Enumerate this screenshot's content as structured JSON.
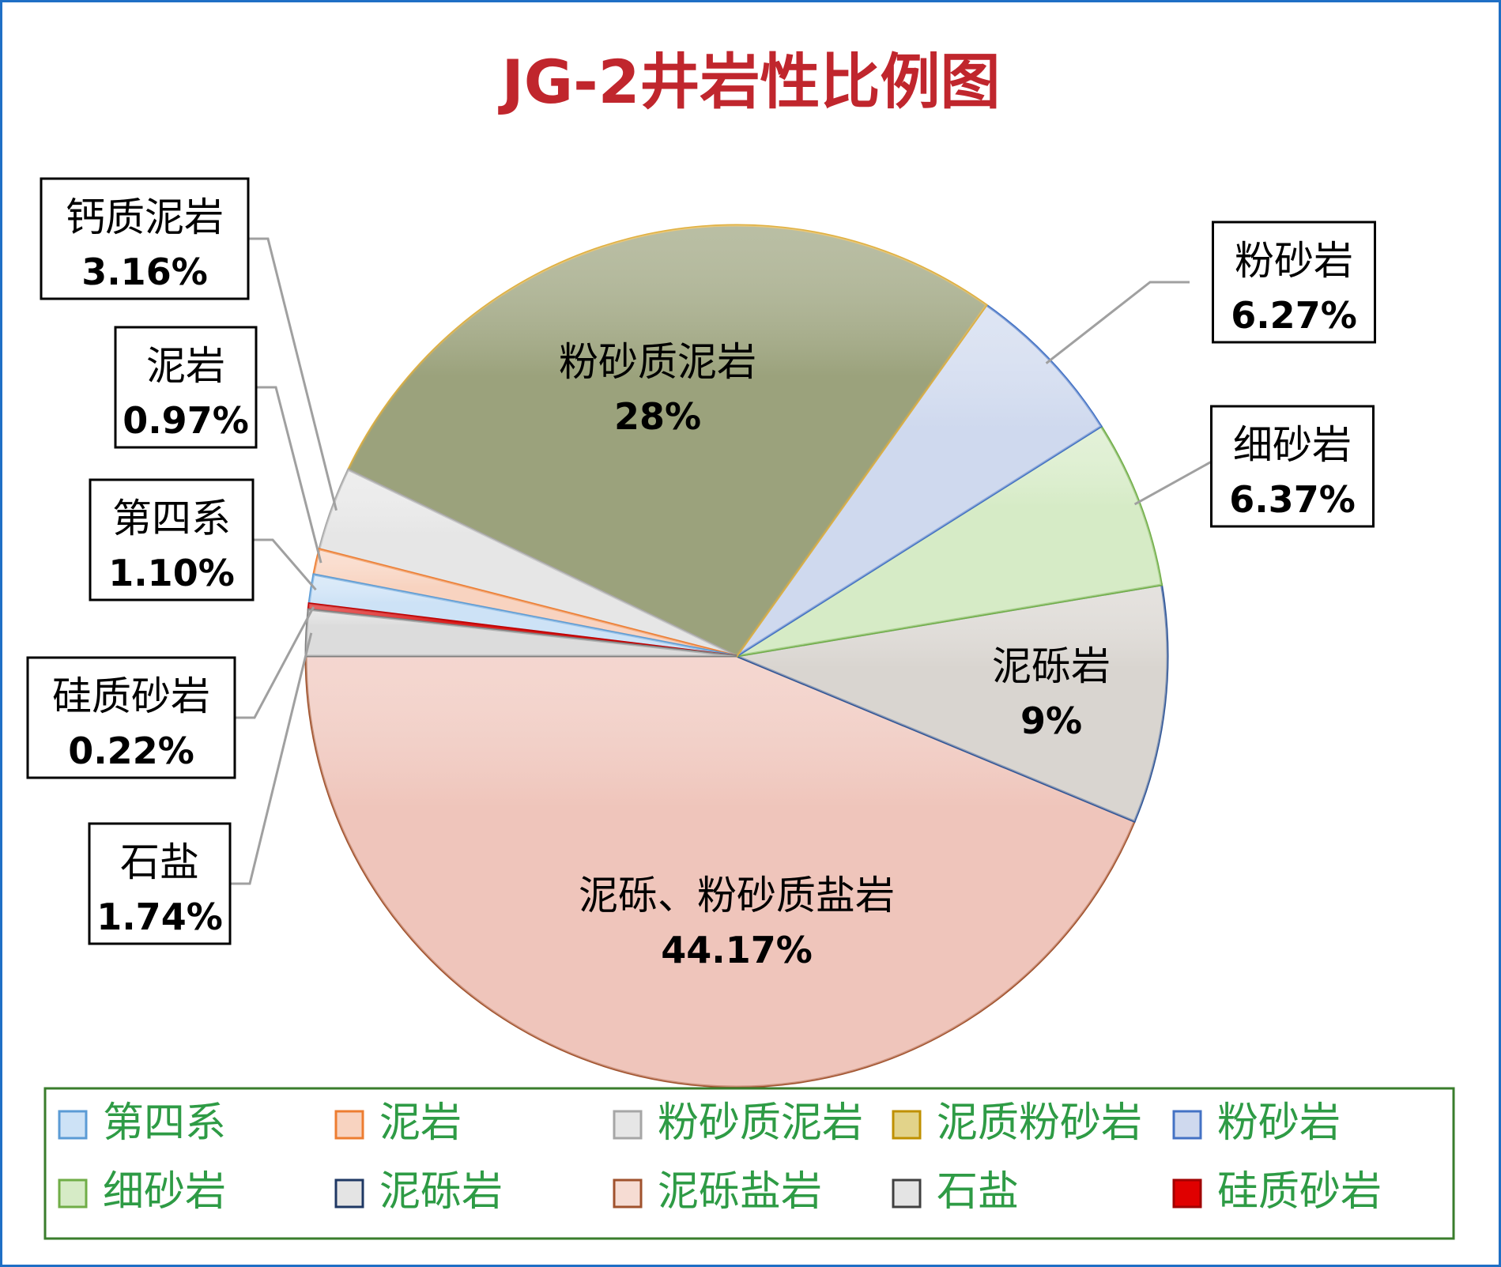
{
  "chart_data": {
    "type": "pie",
    "title": "JG-2井岩性比例图",
    "title_color": "#c0262d",
    "slices": [
      {
        "name": "泥砾、粉砂质盐岩",
        "pct_label": "44.17%",
        "value": 44.17,
        "color": "#efc5bb",
        "stroke": "#a0522d"
      },
      {
        "name": "泥砾岩",
        "pct_label": "9%",
        "value": 9.0,
        "color": "#d9d5d0",
        "stroke": "#2f5597"
      },
      {
        "name": "细砂岩",
        "pct_label": "6.37%",
        "value": 6.37,
        "color": "#d6ebc6",
        "stroke": "#70ad47"
      },
      {
        "name": "粉砂岩",
        "pct_label": "6.27%",
        "value": 6.27,
        "color": "#cfd9ee",
        "stroke": "#4472c4"
      },
      {
        "name": "粉砂质泥岩",
        "pct_label": "28%",
        "value": 28.0,
        "color": "#9ba27c",
        "stroke": "#e0b040"
      },
      {
        "name": "钙质泥岩",
        "pct_label": "3.16%",
        "value": 3.16,
        "color": "#e6e6e6",
        "stroke": "#a6a6a6"
      },
      {
        "name": "泥岩",
        "pct_label": "0.97%",
        "value": 0.97,
        "color": "#f8d3c0",
        "stroke": "#ed7d31"
      },
      {
        "name": "第四系",
        "pct_label": "1.10%",
        "value": 1.1,
        "color": "#cde2f6",
        "stroke": "#5b9bd5"
      },
      {
        "name": "硅质砂岩",
        "pct_label": "0.22%",
        "value": 0.22,
        "color": "#dd2222",
        "stroke": "#c00000"
      },
      {
        "name": "石盐",
        "pct_label": "1.74%",
        "value": 1.74,
        "color": "#dcdcdc",
        "stroke": "#7f7f7f"
      }
    ],
    "legend": {
      "placement": "bottom",
      "text_color": "#2e9b45",
      "border_color": "#3a7d2c",
      "entries": [
        {
          "label": "第四系",
          "fill": "#cde2f6",
          "stroke": "#5b9bd5"
        },
        {
          "label": "泥岩",
          "fill": "#f8d3c0",
          "stroke": "#ed7d31"
        },
        {
          "label": "粉砂质泥岩",
          "fill": "#e6e6e6",
          "stroke": "#a6a6a6"
        },
        {
          "label": "泥质粉砂岩",
          "fill": "#e2d38a",
          "stroke": "#bf9000"
        },
        {
          "label": "粉砂岩",
          "fill": "#cfd9ee",
          "stroke": "#4472c4"
        },
        {
          "label": "细砂岩",
          "fill": "#d6ebc6",
          "stroke": "#70ad47"
        },
        {
          "label": "泥砾岩",
          "fill": "#e4e4e4",
          "stroke": "#1f3864"
        },
        {
          "label": "泥砾盐岩",
          "fill": "#f6dcd3",
          "stroke": "#a0522d"
        },
        {
          "label": "石盐",
          "fill": "#e4e4e4",
          "stroke": "#404040"
        },
        {
          "label": "硅质砂岩",
          "fill": "#e00000",
          "stroke": "#a00000"
        }
      ]
    }
  }
}
